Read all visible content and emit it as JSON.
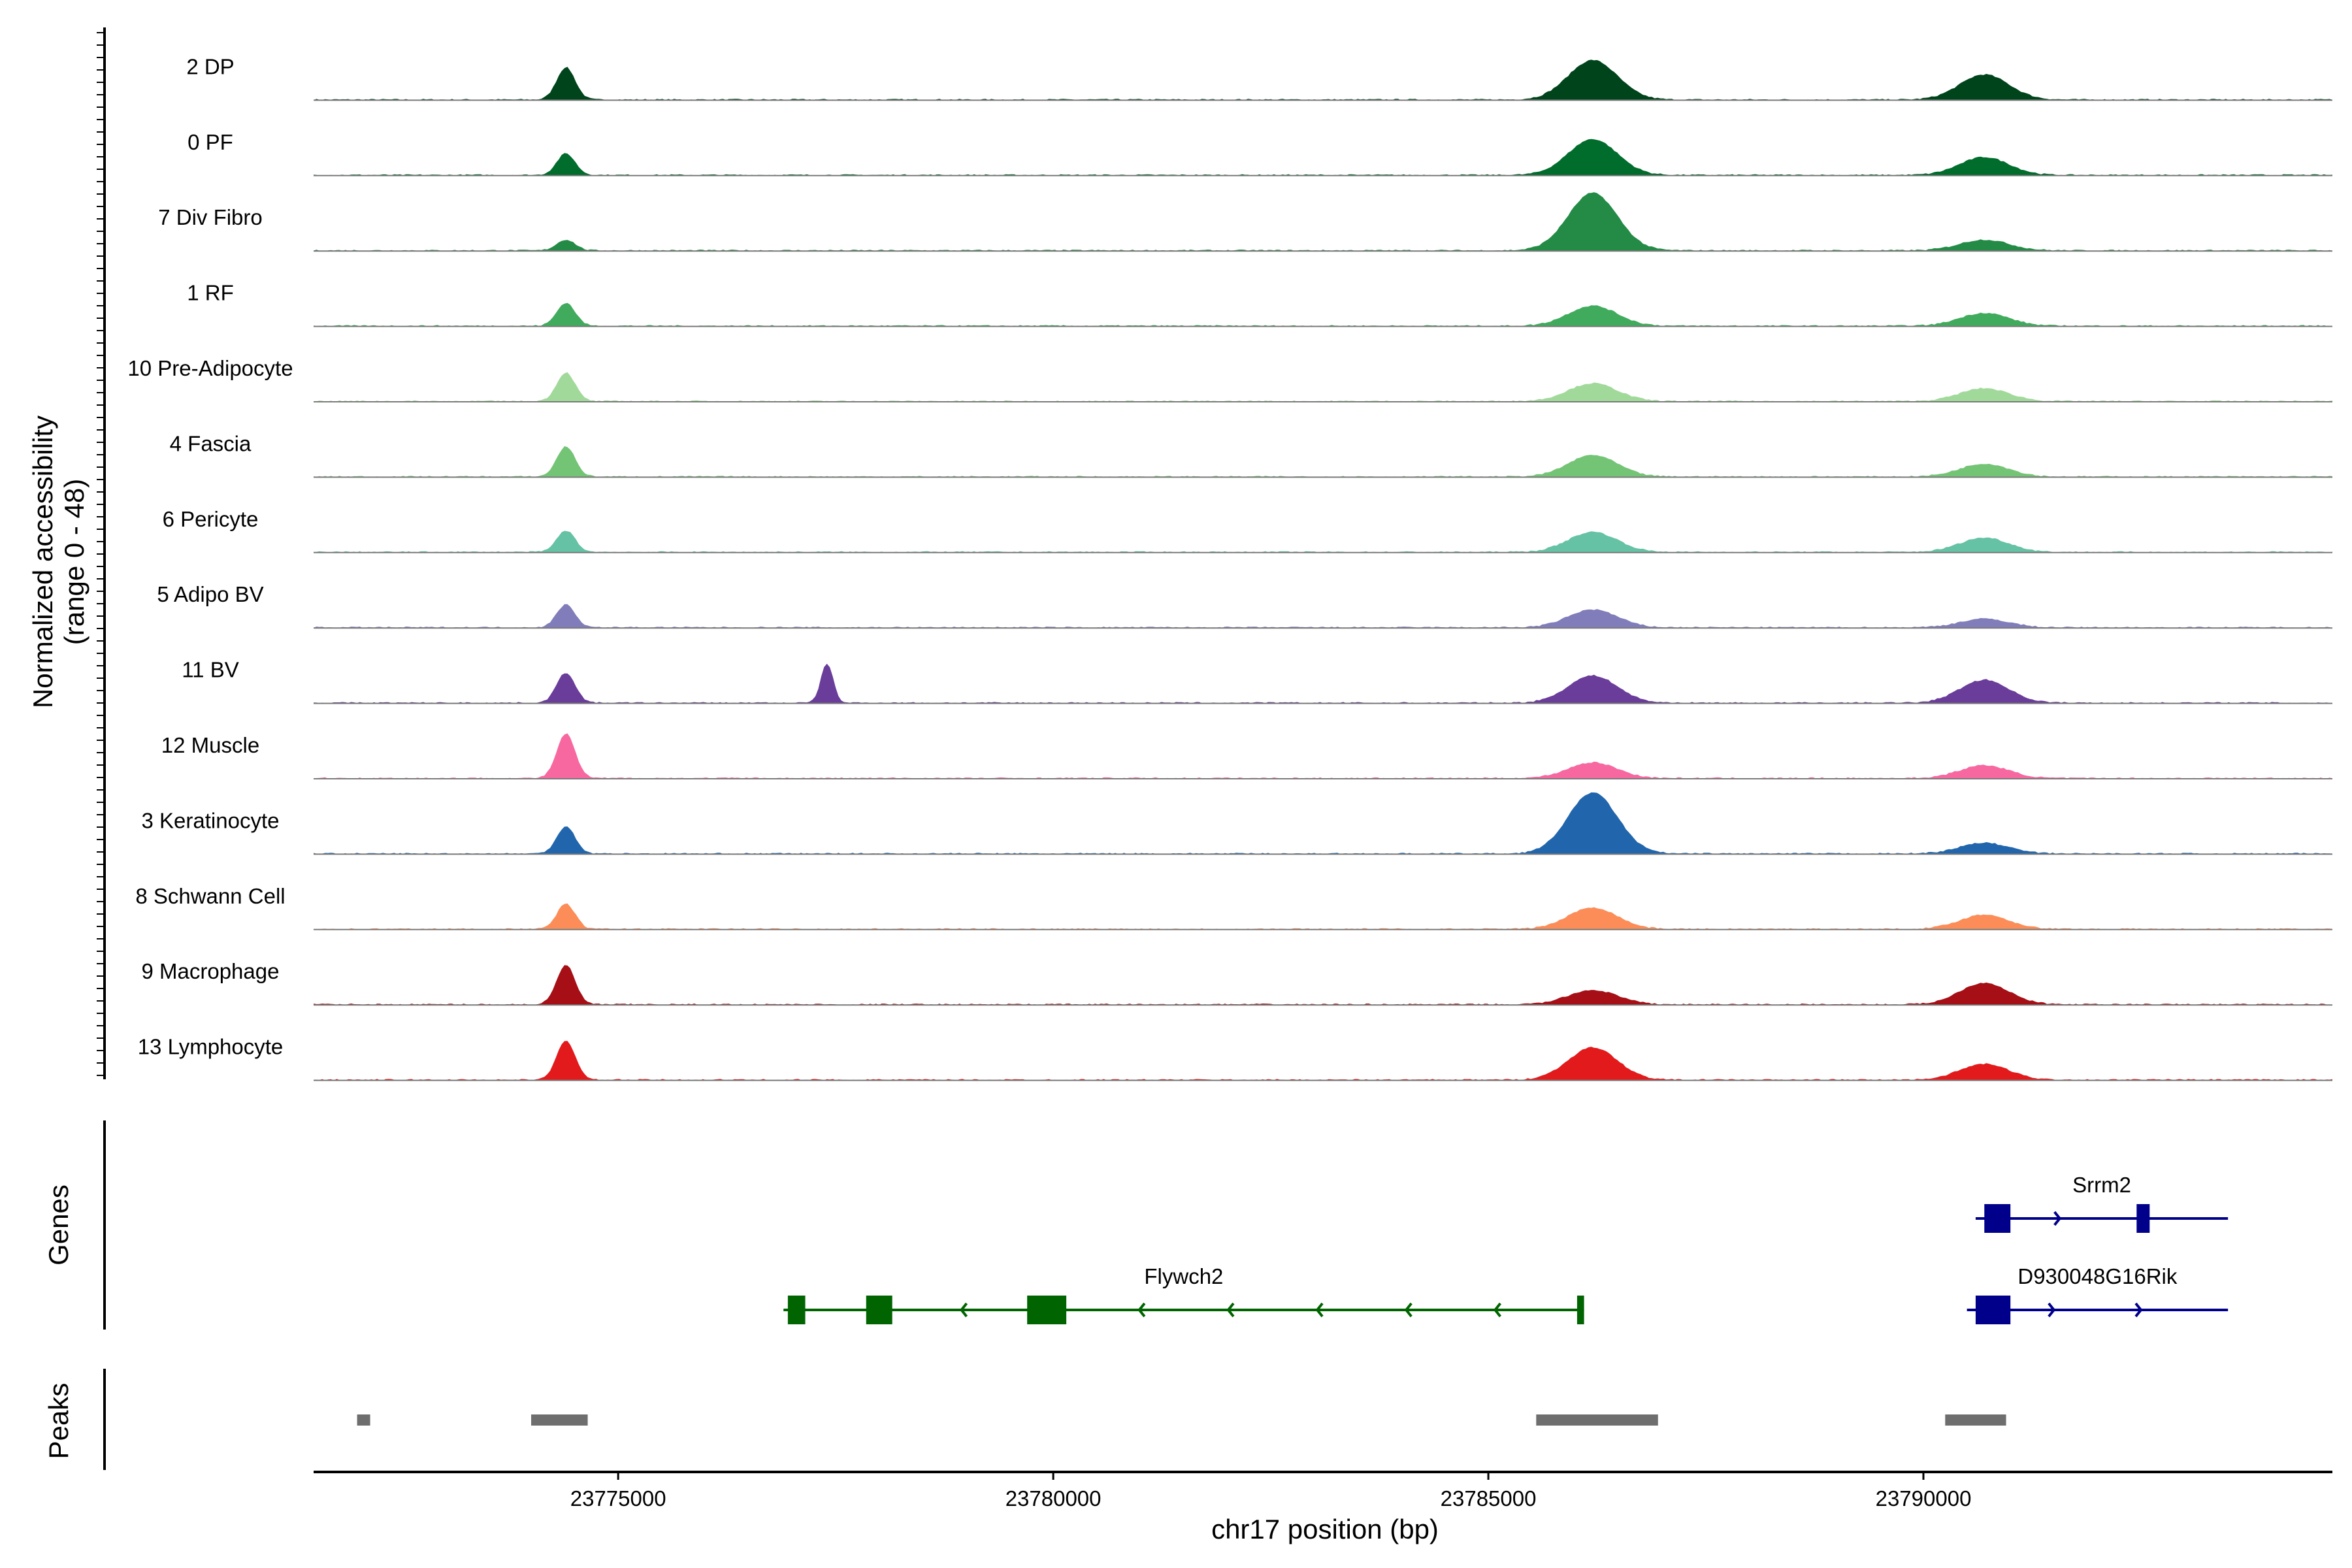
{
  "chart_data": {
    "type": "genome-track",
    "ylabel_line1": "Normalized accessibility",
    "ylabel_line2": "(range 0 - 48)",
    "xlabel": "chr17 position (bp)",
    "xlim": [
      23771500,
      23794700
    ],
    "x_ticks": [
      23775000,
      23780000,
      23785000,
      23790000
    ],
    "x_tick_labels": [
      "23775000",
      "23780000",
      "23785000",
      "23790000"
    ],
    "y_range": [
      0,
      48
    ],
    "panel_titles": {
      "genes": "Genes",
      "peaks": "Peaks"
    },
    "tracks": [
      {
        "name": "2 DP",
        "color": "#00441b",
        "peaks": [
          [
            23774100,
            23774700,
            0.45
          ],
          [
            23785400,
            23787000,
            0.55
          ],
          [
            23789900,
            23791500,
            0.35
          ]
        ],
        "max": 48
      },
      {
        "name": "0 PF",
        "color": "#006d2c",
        "peaks": [
          [
            23774100,
            23774700,
            0.3
          ],
          [
            23785400,
            23787000,
            0.5
          ],
          [
            23789900,
            23791500,
            0.25
          ]
        ],
        "max": 48
      },
      {
        "name": "7 Div Fibro",
        "color": "#238b45",
        "peaks": [
          [
            23774100,
            23774700,
            0.15
          ],
          [
            23785400,
            23787000,
            0.8
          ],
          [
            23789900,
            23791500,
            0.15
          ]
        ],
        "max": 48
      },
      {
        "name": "1 RF",
        "color": "#41ab5d",
        "peaks": [
          [
            23774100,
            23774700,
            0.32
          ],
          [
            23785400,
            23787000,
            0.28
          ],
          [
            23789900,
            23791500,
            0.18
          ]
        ],
        "max": 48
      },
      {
        "name": "10 Pre-Adipocyte",
        "color": "#a1d99b",
        "peaks": [
          [
            23774100,
            23774700,
            0.4
          ],
          [
            23785400,
            23787000,
            0.25
          ],
          [
            23789900,
            23791500,
            0.18
          ]
        ],
        "max": 48
      },
      {
        "name": "4 Fascia",
        "color": "#74c476",
        "peaks": [
          [
            23774100,
            23774700,
            0.42
          ],
          [
            23785400,
            23787000,
            0.3
          ],
          [
            23789900,
            23791500,
            0.18
          ]
        ],
        "max": 48
      },
      {
        "name": "6 Pericyte",
        "color": "#66c2a4",
        "peaks": [
          [
            23774100,
            23774700,
            0.3
          ],
          [
            23785400,
            23787000,
            0.28
          ],
          [
            23789900,
            23791500,
            0.2
          ]
        ],
        "max": 48
      },
      {
        "name": "5 Adipo BV",
        "color": "#807dba",
        "peaks": [
          [
            23774100,
            23774700,
            0.32
          ],
          [
            23785400,
            23787000,
            0.25
          ],
          [
            23789900,
            23791500,
            0.12
          ]
        ],
        "max": 48
      },
      {
        "name": "11 BV",
        "color": "#6a3d9a",
        "peaks": [
          [
            23774100,
            23774700,
            0.42
          ],
          [
            23777200,
            23777600,
            0.55
          ],
          [
            23785400,
            23787000,
            0.38
          ],
          [
            23789900,
            23791500,
            0.32
          ]
        ],
        "max": 48
      },
      {
        "name": "12 Muscle",
        "color": "#f768a1",
        "peaks": [
          [
            23774100,
            23774700,
            0.62
          ],
          [
            23785400,
            23787000,
            0.22
          ],
          [
            23789900,
            23791500,
            0.18
          ]
        ],
        "max": 48
      },
      {
        "name": "3 Keratinocyte",
        "color": "#2166ac",
        "peaks": [
          [
            23774100,
            23774700,
            0.38
          ],
          [
            23785400,
            23787000,
            0.85
          ],
          [
            23789900,
            23791500,
            0.15
          ]
        ],
        "max": 48
      },
      {
        "name": "8 Schwann Cell",
        "color": "#fc8d59",
        "peaks": [
          [
            23774100,
            23774700,
            0.35
          ],
          [
            23785400,
            23787000,
            0.3
          ],
          [
            23789900,
            23791500,
            0.2
          ]
        ],
        "max": 48
      },
      {
        "name": "9 Macrophage",
        "color": "#a50f15",
        "peaks": [
          [
            23774100,
            23774700,
            0.55
          ],
          [
            23785400,
            23787000,
            0.2
          ],
          [
            23789900,
            23791500,
            0.3
          ]
        ],
        "max": 48
      },
      {
        "name": "13 Lymphocyte",
        "color": "#e31a1c",
        "peaks": [
          [
            23774100,
            23774700,
            0.55
          ],
          [
            23785400,
            23787000,
            0.45
          ],
          [
            23789900,
            23791500,
            0.22
          ]
        ],
        "max": 48
      }
    ],
    "genes": [
      {
        "name": "Srrm2",
        "color": "#00008b",
        "strand": "+",
        "start": 23790600,
        "end": 23793500,
        "row": 0,
        "exons": [
          [
            23790700,
            23791000
          ],
          [
            23792450,
            23792600
          ]
        ]
      },
      {
        "name": "Flywch2",
        "color": "#006400",
        "strand": "-",
        "start": 23776900,
        "end": 23786100,
        "row": 1,
        "exons": [
          [
            23776950,
            23777150
          ],
          [
            23777850,
            23778150
          ],
          [
            23779700,
            23780150
          ],
          [
            23786020,
            23786100
          ]
        ]
      },
      {
        "name": "D930048G16Rik",
        "color": "#00008b",
        "strand": "+",
        "start": 23790500,
        "end": 23793500,
        "row": 1,
        "exons": [
          [
            23790600,
            23791000
          ]
        ]
      }
    ],
    "peak_regions": [
      [
        23772000,
        23772150
      ],
      [
        23774000,
        23774650
      ],
      [
        23785550,
        23786950
      ],
      [
        23790250,
        23790950
      ]
    ],
    "peak_color": "#6e6e6e"
  }
}
